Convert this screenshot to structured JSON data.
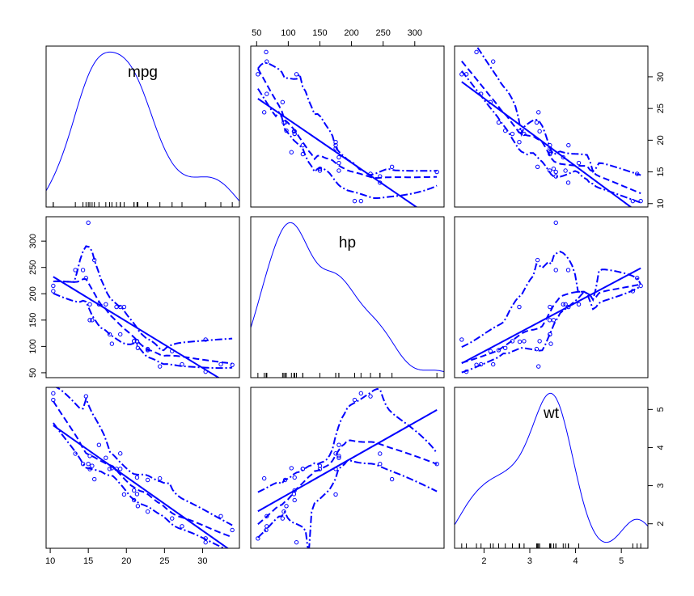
{
  "chart_data": {
    "type": "scatter_matrix",
    "color": "#0000ff",
    "variables": [
      {
        "name": "mpg",
        "lim": [
          9.46,
          34.84
        ],
        "ticks": [
          10,
          15,
          20,
          25,
          30
        ],
        "values": [
          21,
          21,
          22.8,
          21.4,
          18.7,
          18.1,
          14.3,
          24.4,
          22.8,
          19.2,
          17.8,
          16.4,
          17.3,
          15.2,
          10.4,
          10.4,
          14.7,
          32.4,
          30.4,
          33.9,
          21.5,
          15.5,
          15.2,
          13.3,
          19.2,
          27.3,
          26,
          30.4,
          15.8,
          19.7,
          15,
          21.4
        ]
      },
      {
        "name": "hp",
        "lim": [
          40.68,
          346.32
        ],
        "ticks": [
          50,
          100,
          150,
          200,
          250,
          300
        ],
        "values": [
          110,
          110,
          93,
          110,
          175,
          105,
          245,
          62,
          95,
          123,
          123,
          180,
          180,
          180,
          205,
          215,
          230,
          66,
          52,
          65,
          97,
          150,
          150,
          245,
          175,
          66,
          91,
          113,
          264,
          175,
          335,
          109
        ]
      },
      {
        "name": "wt",
        "lim": [
          1.357,
          5.58
        ],
        "ticks": [
          2,
          3,
          4,
          5
        ],
        "values": [
          2.62,
          2.875,
          2.32,
          3.215,
          3.44,
          3.46,
          3.57,
          3.19,
          3.15,
          3.44,
          3.44,
          4.07,
          3.73,
          3.78,
          5.25,
          5.424,
          5.345,
          2.2,
          1.615,
          1.835,
          2.465,
          3.52,
          3.435,
          3.84,
          3.845,
          1.935,
          2.14,
          1.513,
          3.17,
          2.77,
          3.57,
          2.78
        ]
      }
    ]
  }
}
